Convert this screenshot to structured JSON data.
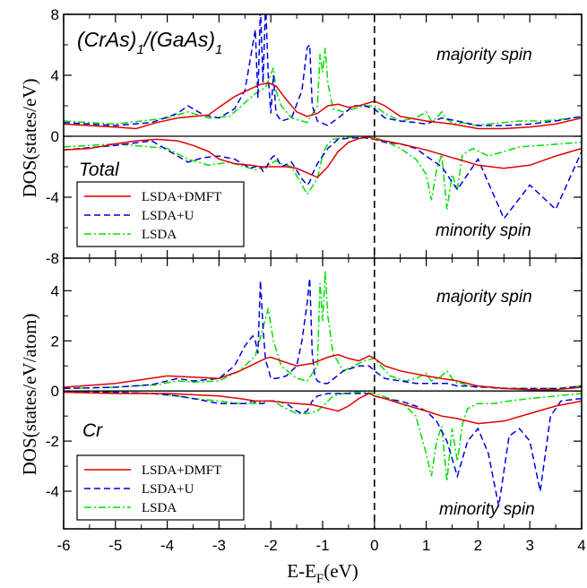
{
  "chart_data": [
    {
      "type": "line",
      "title": "(CrAs)1/(GaAs)1",
      "title_parts": {
        "a": "(CrAs)",
        "a_sub": "1",
        "b": "/(GaAs)",
        "b_sub": "1"
      },
      "panel_label": "Total",
      "xlabel": "",
      "ylabel": "DOS(states/eV)",
      "xlim": [
        -6,
        4
      ],
      "ylim": [
        -8,
        8
      ],
      "xticks": [
        -6,
        -5,
        -4,
        -3,
        -2,
        -1,
        0,
        1,
        2,
        3,
        4
      ],
      "yticks": [
        -8,
        -4,
        0,
        4,
        8
      ],
      "annotations": {
        "majority": "majority spin",
        "minority": "minority spin"
      },
      "legend": {
        "placement": "lower-left",
        "entries": [
          "LSDA+DMFT",
          "LSDA+U",
          "LSDA"
        ]
      },
      "colors": {
        "LSDA+DMFT": "#e00000",
        "LSDA+U": "#0000e0",
        "LSDA": "#00e000"
      },
      "series": [
        {
          "name": "LSDA+DMFT",
          "style": "solid",
          "x": [
            -6,
            -5.5,
            -5.0,
            -4.6,
            -4.2,
            -3.8,
            -3.5,
            -3.2,
            -3.0,
            -2.7,
            -2.4,
            -2.2,
            -2.05,
            -1.9,
            -1.7,
            -1.5,
            -1.3,
            -1.1,
            -0.9,
            -0.7,
            -0.5,
            -0.3,
            -0.1,
            0.0,
            0.2,
            0.5,
            1.0,
            1.5,
            2.0,
            2.5,
            3.0,
            3.5,
            4.0
          ],
          "up": [
            0.8,
            0.7,
            0.6,
            0.5,
            0.9,
            1.2,
            1.3,
            1.4,
            1.9,
            2.6,
            3.1,
            3.4,
            3.5,
            3.3,
            2.4,
            1.6,
            1.3,
            1.5,
            2.0,
            2.1,
            1.9,
            2.0,
            2.2,
            2.3,
            2.0,
            1.3,
            1.0,
            0.8,
            0.5,
            0.5,
            0.6,
            0.8,
            1.2
          ],
          "dn": [
            -0.9,
            -0.8,
            -0.5,
            -0.3,
            -0.2,
            -0.3,
            -0.6,
            -1.0,
            -1.5,
            -1.8,
            -1.9,
            -2.0,
            -2.0,
            -2.0,
            -2.0,
            -2.1,
            -2.4,
            -2.7,
            -2.0,
            -1.0,
            -0.4,
            -0.15,
            -0.05,
            -0.2,
            -0.3,
            -0.5,
            -0.9,
            -1.4,
            -1.9,
            -2.1,
            -1.9,
            -1.3,
            -0.8
          ]
        },
        {
          "name": "LSDA+U",
          "style": "dashed",
          "x": [
            -6,
            -5.0,
            -4.3,
            -3.8,
            -3.6,
            -3.3,
            -3.0,
            -2.7,
            -2.5,
            -2.4,
            -2.3,
            -2.25,
            -2.2,
            -2.15,
            -2.1,
            -2.05,
            -2.0,
            -1.95,
            -1.9,
            -1.8,
            -1.6,
            -1.4,
            -1.3,
            -1.25,
            -1.2,
            -1.1,
            -0.9,
            -0.7,
            -0.4,
            -0.2,
            0.0,
            0.2,
            0.5,
            0.8,
            1.0,
            1.3,
            1.6,
            2.0,
            2.5,
            3.0,
            3.5,
            4.0
          ],
          "up": [
            0.9,
            0.7,
            0.9,
            1.5,
            2.0,
            1.4,
            1.2,
            1.8,
            3.0,
            5.0,
            7.0,
            2.5,
            8.5,
            3.5,
            8.8,
            4.0,
            1.5,
            4.0,
            1.5,
            1.0,
            1.2,
            3.0,
            5.8,
            6.0,
            2.0,
            1.0,
            0.7,
            1.2,
            2.0,
            2.0,
            1.8,
            1.2,
            1.0,
            0.9,
            0.8,
            1.2,
            1.0,
            0.7,
            0.7,
            0.8,
            1.0,
            1.3
          ],
          "dn": [
            -0.9,
            -0.6,
            -0.3,
            -1.3,
            -1.7,
            -1.4,
            -1.3,
            -1.5,
            -1.9,
            -2.1,
            -2.0,
            -1.9,
            -2.0,
            -2.3,
            -2.1,
            -1.8,
            -1.5,
            -1.3,
            -1.3,
            -2.0,
            -1.7,
            -2.8,
            -3.2,
            -3.0,
            -2.5,
            -1.8,
            -0.8,
            -0.2,
            -0.1,
            -0.1,
            -0.2,
            -0.4,
            -0.5,
            -0.8,
            -1.3,
            -2.0,
            -3.5,
            -1.5,
            -5.4,
            -3.2,
            -4.8,
            -1.0
          ]
        },
        {
          "name": "LSDA",
          "style": "dashdot",
          "x": [
            -6,
            -5.0,
            -4.0,
            -3.6,
            -3.2,
            -2.8,
            -2.5,
            -2.3,
            -2.1,
            -1.95,
            -1.9,
            -1.8,
            -1.6,
            -1.3,
            -1.1,
            -1.05,
            -1.0,
            -0.95,
            -0.9,
            -0.8,
            -0.6,
            -0.4,
            -0.2,
            0.0,
            0.2,
            0.5,
            0.8,
            1.0,
            1.1,
            1.2,
            1.3,
            1.4,
            1.5,
            1.6,
            1.7,
            1.9,
            2.2,
            2.5,
            2.8,
            3.2,
            3.6,
            4.0
          ],
          "up": [
            1.0,
            0.8,
            1.2,
            1.6,
            1.2,
            1.3,
            2.2,
            2.8,
            3.2,
            4.5,
            3.0,
            2.0,
            1.2,
            0.9,
            2.0,
            5.4,
            4.2,
            5.8,
            3.5,
            1.8,
            1.6,
            1.8,
            2.0,
            2.0,
            1.5,
            1.0,
            1.2,
            1.6,
            1.0,
            1.2,
            1.6,
            1.1,
            0.9,
            0.8,
            0.9,
            0.7,
            0.8,
            0.9,
            1.0,
            1.0,
            1.1,
            1.3
          ],
          "dn": [
            -0.7,
            -0.5,
            -0.8,
            -1.5,
            -1.9,
            -1.7,
            -2.0,
            -2.2,
            -2.0,
            -1.7,
            -1.6,
            -1.8,
            -2.0,
            -3.8,
            -2.8,
            -2.0,
            -1.2,
            -0.8,
            -0.5,
            -0.2,
            -0.1,
            -0.05,
            -0.05,
            -0.1,
            -0.3,
            -0.8,
            -1.5,
            -2.5,
            -4.2,
            -2.2,
            -1.2,
            -4.8,
            -2.5,
            -3.5,
            -1.2,
            -0.8,
            -1.3,
            -1.0,
            -0.7,
            -0.6,
            -0.5,
            -0.4
          ]
        }
      ]
    },
    {
      "type": "line",
      "title": "",
      "panel_label": "Cr",
      "xlabel": "E-E_F(eV)",
      "xlabel_parts": {
        "main": "E-E",
        "sub": "F",
        "unit": "(eV)"
      },
      "ylabel": "DOS(states/eV/atom)",
      "xlim": [
        -6,
        4
      ],
      "ylim": [
        -5.5,
        5.3
      ],
      "xticks": [
        -6,
        -5,
        -4,
        -3,
        -2,
        -1,
        0,
        1,
        2,
        3,
        4
      ],
      "yticks": [
        -4,
        -2,
        0,
        2,
        4
      ],
      "annotations": {
        "majority": "majority spin",
        "minority": "minority spin"
      },
      "legend": {
        "placement": "lower-left",
        "entries": [
          "LSDA+DMFT",
          "LSDA+U",
          "LSDA"
        ]
      },
      "colors": {
        "LSDA+DMFT": "#e00000",
        "LSDA+U": "#0000e0",
        "LSDA": "#00e000"
      },
      "series": [
        {
          "name": "LSDA+DMFT",
          "style": "solid",
          "x": [
            -6,
            -5.0,
            -4.5,
            -4.0,
            -3.5,
            -3.0,
            -2.6,
            -2.3,
            -2.1,
            -2.0,
            -1.8,
            -1.5,
            -1.2,
            -0.9,
            -0.7,
            -0.5,
            -0.3,
            -0.1,
            0.0,
            0.2,
            0.5,
            1.0,
            1.3,
            1.6,
            2.0,
            2.5,
            3.0,
            3.5,
            4.0
          ],
          "up": [
            0.15,
            0.3,
            0.45,
            0.6,
            0.55,
            0.5,
            0.8,
            1.1,
            1.3,
            1.35,
            1.2,
            1.0,
            1.1,
            1.35,
            1.45,
            1.3,
            1.2,
            1.4,
            1.3,
            1.0,
            0.8,
            0.6,
            0.5,
            0.4,
            0.2,
            0.1,
            0.05,
            0.05,
            0.15
          ],
          "dn": [
            -0.05,
            -0.1,
            -0.1,
            -0.1,
            -0.15,
            -0.2,
            -0.3,
            -0.4,
            -0.4,
            -0.4,
            -0.45,
            -0.5,
            -0.55,
            -0.7,
            -0.8,
            -0.6,
            -0.3,
            -0.1,
            -0.2,
            -0.3,
            -0.5,
            -0.8,
            -1.0,
            -1.1,
            -1.3,
            -1.2,
            -0.9,
            -0.6,
            -0.4
          ]
        },
        {
          "name": "LSDA+U",
          "style": "dashed",
          "x": [
            -6,
            -5.0,
            -4.3,
            -3.8,
            -3.5,
            -3.0,
            -2.7,
            -2.5,
            -2.35,
            -2.3,
            -2.25,
            -2.2,
            -2.15,
            -2.1,
            -2.05,
            -2.0,
            -1.9,
            -1.7,
            -1.5,
            -1.4,
            -1.3,
            -1.25,
            -1.2,
            -1.15,
            -1.1,
            -1.0,
            -0.9,
            -0.6,
            -0.3,
            -0.1,
            0.0,
            0.2,
            0.5,
            0.8,
            1.0,
            1.2,
            1.4,
            1.6,
            1.8,
            2.0,
            2.2,
            2.4,
            2.6,
            2.8,
            3.0,
            3.2,
            3.4,
            3.6,
            4.0
          ],
          "up": [
            0.1,
            0.15,
            0.25,
            0.5,
            0.4,
            0.5,
            1.0,
            1.8,
            2.2,
            2.0,
            1.5,
            4.4,
            2.5,
            1.2,
            0.9,
            0.5,
            0.5,
            0.6,
            1.0,
            2.0,
            3.5,
            4.5,
            1.5,
            0.6,
            0.4,
            0.3,
            0.3,
            0.8,
            1.0,
            1.0,
            0.8,
            0.5,
            0.4,
            0.3,
            0.3,
            0.3,
            0.3,
            0.2,
            0.2,
            0.15,
            0.15,
            0.1,
            0.1,
            0.1,
            0.1,
            0.1,
            0.1,
            0.1,
            0.2
          ],
          "dn": [
            -0.05,
            -0.05,
            -0.1,
            -0.2,
            -0.3,
            -0.5,
            -0.5,
            -0.5,
            -0.4,
            -0.45,
            -0.5,
            -0.5,
            -0.5,
            -0.45,
            -0.4,
            -0.4,
            -0.4,
            -0.5,
            -0.8,
            -0.9,
            -0.8,
            -0.6,
            -0.4,
            -0.3,
            -0.2,
            -0.15,
            -0.1,
            -0.1,
            -0.1,
            -0.1,
            -0.2,
            -0.3,
            -0.4,
            -0.6,
            -0.8,
            -1.2,
            -2.0,
            -3.4,
            -2.0,
            -1.5,
            -2.5,
            -4.6,
            -1.8,
            -1.5,
            -2.0,
            -4.0,
            -1.0,
            -0.4,
            -0.3
          ]
        },
        {
          "name": "LSDA",
          "style": "dashdot",
          "x": [
            -6,
            -5.0,
            -4.2,
            -3.8,
            -3.5,
            -3.0,
            -2.6,
            -2.3,
            -2.15,
            -2.05,
            -1.95,
            -1.8,
            -1.5,
            -1.3,
            -1.1,
            -1.05,
            -1.0,
            -0.95,
            -0.9,
            -0.8,
            -0.6,
            -0.4,
            -0.2,
            0.0,
            0.3,
            0.6,
            0.8,
            1.0,
            1.1,
            1.2,
            1.3,
            1.4,
            1.5,
            1.6,
            1.7,
            1.8,
            2.0,
            2.3,
            2.6,
            3.0,
            3.5,
            4.0
          ],
          "up": [
            0.1,
            0.15,
            0.25,
            0.4,
            0.35,
            0.4,
            0.8,
            1.4,
            2.5,
            3.3,
            2.0,
            1.0,
            0.5,
            0.4,
            1.0,
            4.3,
            2.8,
            4.8,
            3.0,
            1.5,
            0.8,
            1.0,
            1.2,
            1.3,
            0.6,
            0.4,
            0.5,
            0.7,
            0.4,
            0.5,
            0.6,
            0.8,
            0.5,
            0.3,
            0.3,
            0.2,
            0.2,
            0.15,
            0.1,
            0.1,
            0.1,
            0.2
          ],
          "dn": [
            -0.05,
            -0.05,
            -0.1,
            -0.2,
            -0.3,
            -0.4,
            -0.5,
            -0.5,
            -0.4,
            -0.4,
            -0.4,
            -0.6,
            -0.9,
            -0.9,
            -0.8,
            -0.7,
            -0.6,
            -0.5,
            -0.4,
            -0.2,
            -0.1,
            -0.05,
            -0.05,
            -0.1,
            -0.3,
            -0.6,
            -1.0,
            -2.5,
            -3.4,
            -2.0,
            -1.4,
            -3.6,
            -1.5,
            -2.8,
            -1.3,
            -0.7,
            -0.5,
            -0.5,
            -0.4,
            -0.3,
            -0.2,
            -0.1
          ]
        }
      ]
    }
  ]
}
